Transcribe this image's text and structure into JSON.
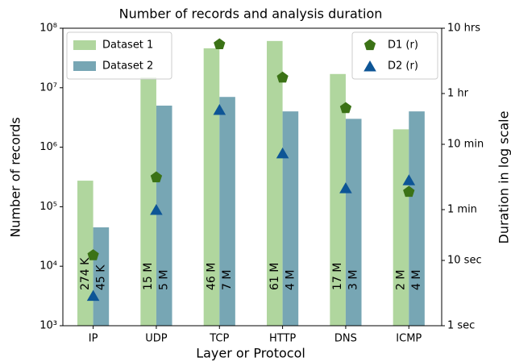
{
  "chart_data": {
    "type": "bar",
    "title": "Number of records and analysis duration",
    "xlabel": "Layer or Protocol",
    "ylabel": "Number of records",
    "y2label": "Duration in log scale",
    "categories": [
      "IP",
      "UDP",
      "TCP",
      "HTTP",
      "DNS",
      "ICMP"
    ],
    "ylog": true,
    "y2log": true,
    "ylim": [
      1000,
      100000000
    ],
    "yticks": [
      {
        "value": 1000,
        "label": "10³"
      },
      {
        "value": 10000,
        "label": "10⁴"
      },
      {
        "value": 100000,
        "label": "10⁵"
      },
      {
        "value": 1000000,
        "label": "10⁶"
      },
      {
        "value": 10000000,
        "label": "10⁷"
      },
      {
        "value": 100000000,
        "label": "10⁸"
      }
    ],
    "y2lim": [
      1,
      36000
    ],
    "y2ticks": [
      {
        "value": 1,
        "label": "1 sec"
      },
      {
        "value": 10,
        "label": "10 sec"
      },
      {
        "value": 60,
        "label": "1 min"
      },
      {
        "value": 600,
        "label": "10 min"
      },
      {
        "value": 3600,
        "label": "1 hr"
      },
      {
        "value": 36000,
        "label": "10 hrs"
      }
    ],
    "legend": "upper left",
    "legend2": "upper right",
    "series": [
      {
        "name": "Dataset 1",
        "type": "bar",
        "color": "#b0d69e",
        "values": [
          274000,
          15000000,
          46000000,
          61000000,
          17000000,
          2000000
        ],
        "value_labels": [
          "274 K",
          "15 M",
          "46 M",
          "61 M",
          "17 M",
          "2 M"
        ]
      },
      {
        "name": "Dataset 2",
        "type": "bar",
        "color": "#77a6b4",
        "values": [
          45000,
          5000000,
          7000000,
          4000000,
          3000000,
          4000000
        ],
        "value_labels": [
          "45 K",
          "5 M",
          "7 M",
          "4 M",
          "3 M",
          "4 M"
        ]
      },
      {
        "name": "D1 (r)",
        "type": "scatter",
        "axis": "y2",
        "marker": "pentagon",
        "color": "#3b7216",
        "values": [
          12,
          187,
          20400,
          6300,
          2150,
          112
        ]
      },
      {
        "name": "D2 (r)",
        "type": "scatter",
        "axis": "y2",
        "marker": "triangle",
        "color": "#0d5596",
        "values": [
          2.9,
          60,
          2040,
          440,
          129,
          171
        ]
      }
    ]
  }
}
